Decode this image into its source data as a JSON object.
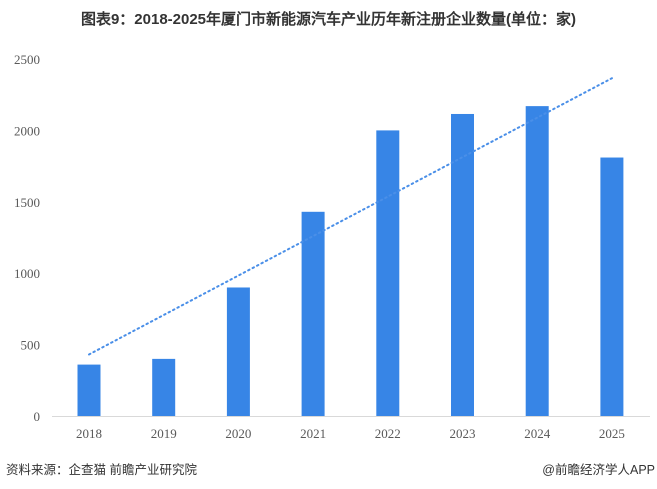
{
  "chart_data": {
    "type": "bar",
    "title": "图表9：2018-2025年厦门市新能源汽车产业历年新注册企业数量(单位：家)",
    "categories": [
      "2018",
      "2019",
      "2020",
      "2021",
      "2022",
      "2023",
      "2024",
      "2025"
    ],
    "values": [
      360,
      400,
      900,
      1430,
      2000,
      2115,
      2170,
      1810
    ],
    "ylim": [
      0,
      2500
    ],
    "yticks": [
      0,
      500,
      1000,
      1500,
      2000,
      2500
    ],
    "xlabel": "",
    "ylabel": "",
    "grid": false,
    "trendline": "linear, dotted",
    "colors": {
      "bar": "#3785E6",
      "trend": "#4A8FE8",
      "axis": "#D9D9D9"
    }
  },
  "footer": {
    "source": "资料来源：企查猫 前瞻产业研究院",
    "credit": "@前瞻经济学人APP"
  }
}
